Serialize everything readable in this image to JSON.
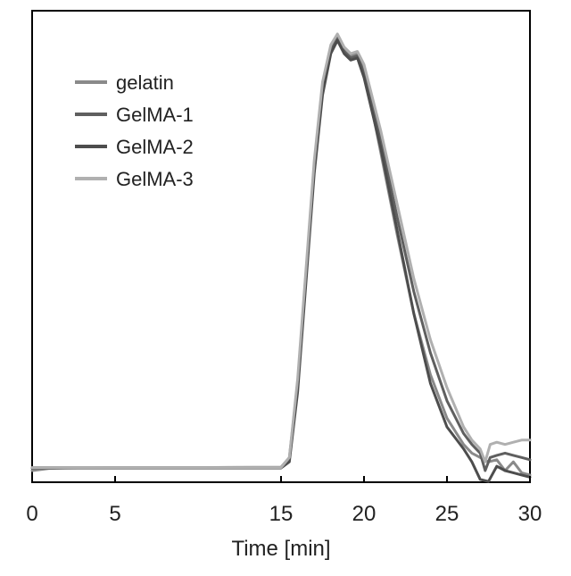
{
  "chart_data": {
    "type": "line",
    "title": "",
    "xlabel": "Time [min]",
    "ylabel": "",
    "xlim": [
      0,
      30
    ],
    "ylim": [
      0,
      1
    ],
    "xticks": [
      0,
      5,
      15,
      20,
      25,
      30
    ],
    "xtick_labels": [
      "0",
      "5",
      "15",
      "20",
      "25",
      "30"
    ],
    "grid": false,
    "legend_position": "top-left",
    "series": [
      {
        "name": "gelatin",
        "color": "#8a8a8a",
        "x": [
          0,
          1,
          2,
          5,
          10,
          15,
          15.5,
          16,
          16.5,
          17,
          17.5,
          18,
          18.4,
          18.8,
          19.2,
          19.6,
          20,
          21,
          22,
          23,
          24,
          25,
          25.5,
          26,
          26.5,
          27,
          27.5,
          28,
          28.5,
          29,
          29.5,
          30
        ],
        "y": [
          0.0,
          0.005,
          0.006,
          0.007,
          0.007,
          0.008,
          0.03,
          0.2,
          0.45,
          0.7,
          0.88,
          0.97,
          0.997,
          0.965,
          0.95,
          0.955,
          0.92,
          0.73,
          0.54,
          0.36,
          0.22,
          0.12,
          0.09,
          0.06,
          0.04,
          0.03,
          0.02,
          0.025,
          0.0,
          0.02,
          -0.005,
          -0.01
        ]
      },
      {
        "name": "GelMA-1",
        "color": "#5f5f5f",
        "x": [
          0,
          1,
          5,
          10,
          15,
          15.5,
          16,
          16.5,
          17,
          17.5,
          18,
          18.4,
          18.8,
          19.2,
          19.6,
          20,
          21,
          22,
          23,
          24,
          25,
          26,
          26.5,
          27,
          27.3,
          27.6,
          28,
          28.5,
          29,
          29.5,
          30
        ],
        "y": [
          0.007,
          0.007,
          0.007,
          0.007,
          0.007,
          0.025,
          0.19,
          0.44,
          0.69,
          0.87,
          0.96,
          0.99,
          0.96,
          0.945,
          0.95,
          0.91,
          0.76,
          0.58,
          0.41,
          0.27,
          0.16,
          0.085,
          0.06,
          0.04,
          0.0,
          0.03,
          0.035,
          0.04,
          0.035,
          0.03,
          0.025
        ]
      },
      {
        "name": "GelMA-2",
        "color": "#4d4d4d",
        "x": [
          0,
          1,
          5,
          10,
          15,
          15.5,
          16,
          16.5,
          17,
          17.5,
          18,
          18.4,
          18.8,
          19.2,
          19.6,
          20,
          21,
          22,
          23,
          24,
          25,
          26,
          26.5,
          27,
          27.5,
          28,
          28.5,
          29,
          29.5,
          30
        ],
        "y": [
          0.006,
          0.006,
          0.006,
          0.006,
          0.006,
          0.02,
          0.18,
          0.43,
          0.68,
          0.86,
          0.955,
          0.985,
          0.955,
          0.94,
          0.945,
          0.9,
          0.74,
          0.55,
          0.36,
          0.2,
          0.1,
          0.05,
          0.02,
          -0.02,
          -0.025,
          0.01,
          0.0,
          -0.005,
          -0.01,
          -0.015
        ]
      },
      {
        "name": "GelMA-3",
        "color": "#b0b0b0",
        "x": [
          0,
          1,
          5,
          10,
          15,
          15.5,
          16,
          16.5,
          17,
          17.5,
          18,
          18.4,
          18.8,
          19.2,
          19.6,
          20,
          21,
          22,
          23,
          24,
          25,
          26,
          26.5,
          27,
          27.3,
          27.6,
          28,
          28.5,
          29,
          29.5,
          30
        ],
        "y": [
          0.007,
          0.007,
          0.007,
          0.007,
          0.007,
          0.03,
          0.21,
          0.46,
          0.71,
          0.89,
          0.975,
          1.0,
          0.97,
          0.955,
          0.96,
          0.93,
          0.78,
          0.61,
          0.44,
          0.3,
          0.19,
          0.1,
          0.07,
          0.05,
          0.02,
          0.06,
          0.065,
          0.06,
          0.065,
          0.07,
          0.07
        ]
      }
    ]
  }
}
